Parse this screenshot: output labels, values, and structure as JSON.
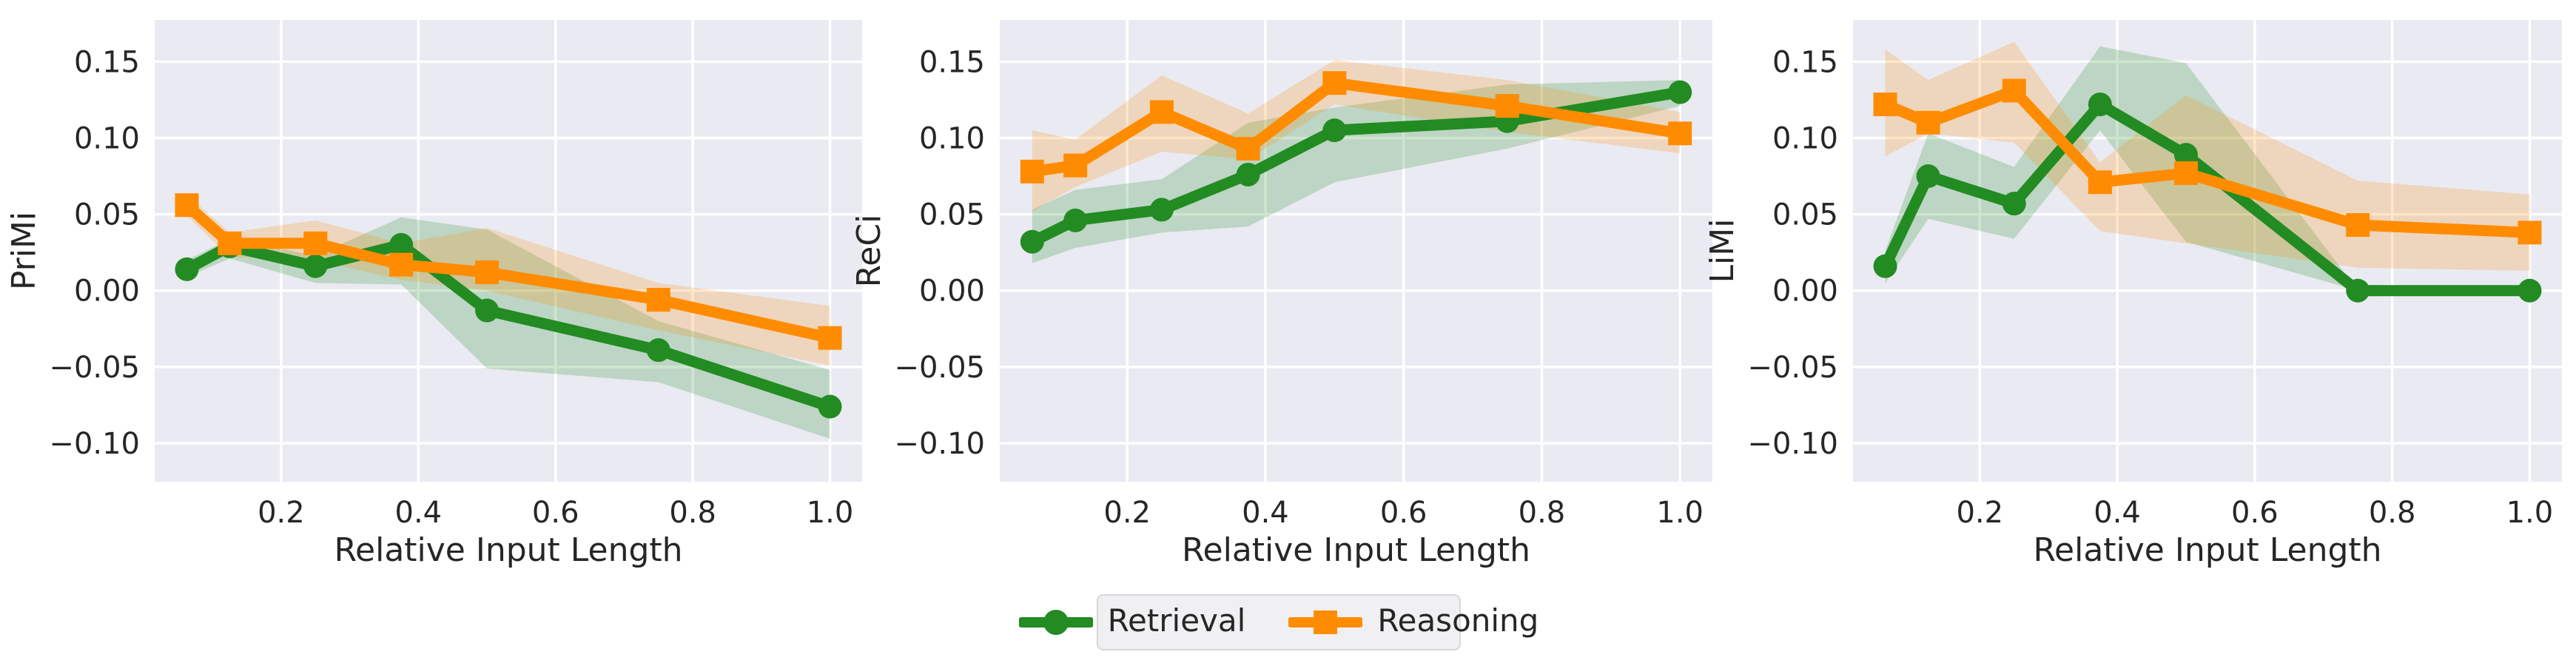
{
  "figure": {
    "background": "#ffffff",
    "axes_background": "#eaeaf2",
    "grid_color": "#ffffff",
    "text_color": "#262626",
    "band_opacity": 0.22
  },
  "chart_data": [
    {
      "type": "line",
      "ylabel": "PriMi",
      "xlabel": "Relative Input Length",
      "x": [
        0.0625,
        0.125,
        0.25,
        0.375,
        0.5,
        0.75,
        1.0
      ],
      "xlim": [
        0.0156,
        1.0469
      ],
      "ylim": [
        -0.1252,
        0.1773
      ],
      "xticks": [
        0.2,
        0.4,
        0.6,
        0.8,
        1.0
      ],
      "xtick_labels": [
        "0.2",
        "0.4",
        "0.6",
        "0.8",
        "1.0"
      ],
      "yticks": [
        0.15,
        0.1,
        0.05,
        0.0,
        -0.05,
        -0.1
      ],
      "ytick_labels": [
        "0.15",
        "0.10",
        "0.05",
        "0.00",
        "−0.05",
        "−0.10"
      ],
      "grid": true,
      "series": [
        {
          "name": "Retrieval",
          "color": "#228B22",
          "marker": "circle",
          "values": [
            0.014,
            0.029,
            0.016,
            0.03,
            -0.013,
            -0.039,
            -0.076
          ],
          "band_lower": [
            0.009,
            0.021,
            0.005,
            0.004,
            -0.051,
            -0.06,
            -0.097
          ],
          "band_upper": [
            0.02,
            0.034,
            0.023,
            0.048,
            0.04,
            -0.02,
            -0.052
          ]
        },
        {
          "name": "Reasoning",
          "color": "#FF8C00",
          "marker": "square",
          "values": [
            0.056,
            0.031,
            0.031,
            0.017,
            0.012,
            -0.006,
            -0.031
          ],
          "band_lower": [
            0.049,
            0.022,
            0.02,
            0.007,
            0.0,
            -0.026,
            -0.049
          ],
          "band_upper": [
            0.063,
            0.038,
            0.046,
            0.031,
            0.041,
            0.005,
            -0.01
          ]
        }
      ]
    },
    {
      "type": "line",
      "ylabel": "ReCi",
      "xlabel": "Relative Input Length",
      "x": [
        0.0625,
        0.125,
        0.25,
        0.375,
        0.5,
        0.75,
        1.0
      ],
      "xlim": [
        0.0156,
        1.0469
      ],
      "ylim": [
        -0.1252,
        0.1773
      ],
      "xticks": [
        0.2,
        0.4,
        0.6,
        0.8,
        1.0
      ],
      "xtick_labels": [
        "0.2",
        "0.4",
        "0.6",
        "0.8",
        "1.0"
      ],
      "yticks": [
        0.15,
        0.1,
        0.05,
        0.0,
        -0.05,
        -0.1
      ],
      "ytick_labels": [
        "0.15",
        "0.10",
        "0.05",
        "0.00",
        "−0.05",
        "−0.10"
      ],
      "grid": true,
      "series": [
        {
          "name": "Retrieval",
          "color": "#228B22",
          "marker": "circle",
          "values": [
            0.032,
            0.046,
            0.053,
            0.076,
            0.105,
            0.111,
            0.13
          ],
          "band_lower": [
            0.018,
            0.028,
            0.038,
            0.042,
            0.071,
            0.093,
            0.121
          ],
          "band_upper": [
            0.053,
            0.066,
            0.073,
            0.11,
            0.12,
            0.135,
            0.138
          ]
        },
        {
          "name": "Reasoning",
          "color": "#FF8C00",
          "marker": "square",
          "values": [
            0.078,
            0.082,
            0.117,
            0.093,
            0.136,
            0.121,
            0.103
          ],
          "band_lower": [
            0.052,
            0.068,
            0.091,
            0.086,
            0.122,
            0.104,
            0.09
          ],
          "band_upper": [
            0.105,
            0.099,
            0.141,
            0.116,
            0.151,
            0.138,
            0.117
          ]
        }
      ]
    },
    {
      "type": "line",
      "ylabel": "LiMi",
      "xlabel": "Relative Input Length",
      "x": [
        0.0625,
        0.125,
        0.25,
        0.375,
        0.5,
        0.75,
        1.0
      ],
      "xlim": [
        0.0156,
        1.0469
      ],
      "ylim": [
        -0.1252,
        0.1773
      ],
      "xticks": [
        0.2,
        0.4,
        0.6,
        0.8,
        1.0
      ],
      "xtick_labels": [
        "0.2",
        "0.4",
        "0.6",
        "0.8",
        "1.0"
      ],
      "yticks": [
        0.15,
        0.1,
        0.05,
        0.0,
        -0.05,
        -0.1
      ],
      "ytick_labels": [
        "0.15",
        "0.10",
        "0.05",
        "0.00",
        "−0.05",
        "−0.10"
      ],
      "grid": true,
      "series": [
        {
          "name": "Retrieval",
          "color": "#228B22",
          "marker": "circle",
          "values": [
            0.016,
            0.075,
            0.057,
            0.122,
            0.089,
            0.0,
            0.0
          ],
          "band_lower": [
            0.005,
            0.047,
            0.034,
            0.105,
            0.032,
            0.0,
            0.0
          ],
          "band_upper": [
            0.026,
            0.103,
            0.081,
            0.16,
            0.149,
            0.0,
            0.0
          ]
        },
        {
          "name": "Reasoning",
          "color": "#FF8C00",
          "marker": "square",
          "values": [
            0.122,
            0.11,
            0.131,
            0.071,
            0.077,
            0.043,
            0.038
          ],
          "band_lower": [
            0.088,
            0.103,
            0.097,
            0.039,
            0.031,
            0.015,
            0.013
          ],
          "band_upper": [
            0.158,
            0.138,
            0.163,
            0.084,
            0.128,
            0.072,
            0.063
          ]
        }
      ]
    }
  ],
  "legend": {
    "items": [
      {
        "label": "Retrieval",
        "color": "#228B22",
        "marker": "circle"
      },
      {
        "label": "Reasoning",
        "color": "#FF8C00",
        "marker": "square"
      }
    ]
  }
}
